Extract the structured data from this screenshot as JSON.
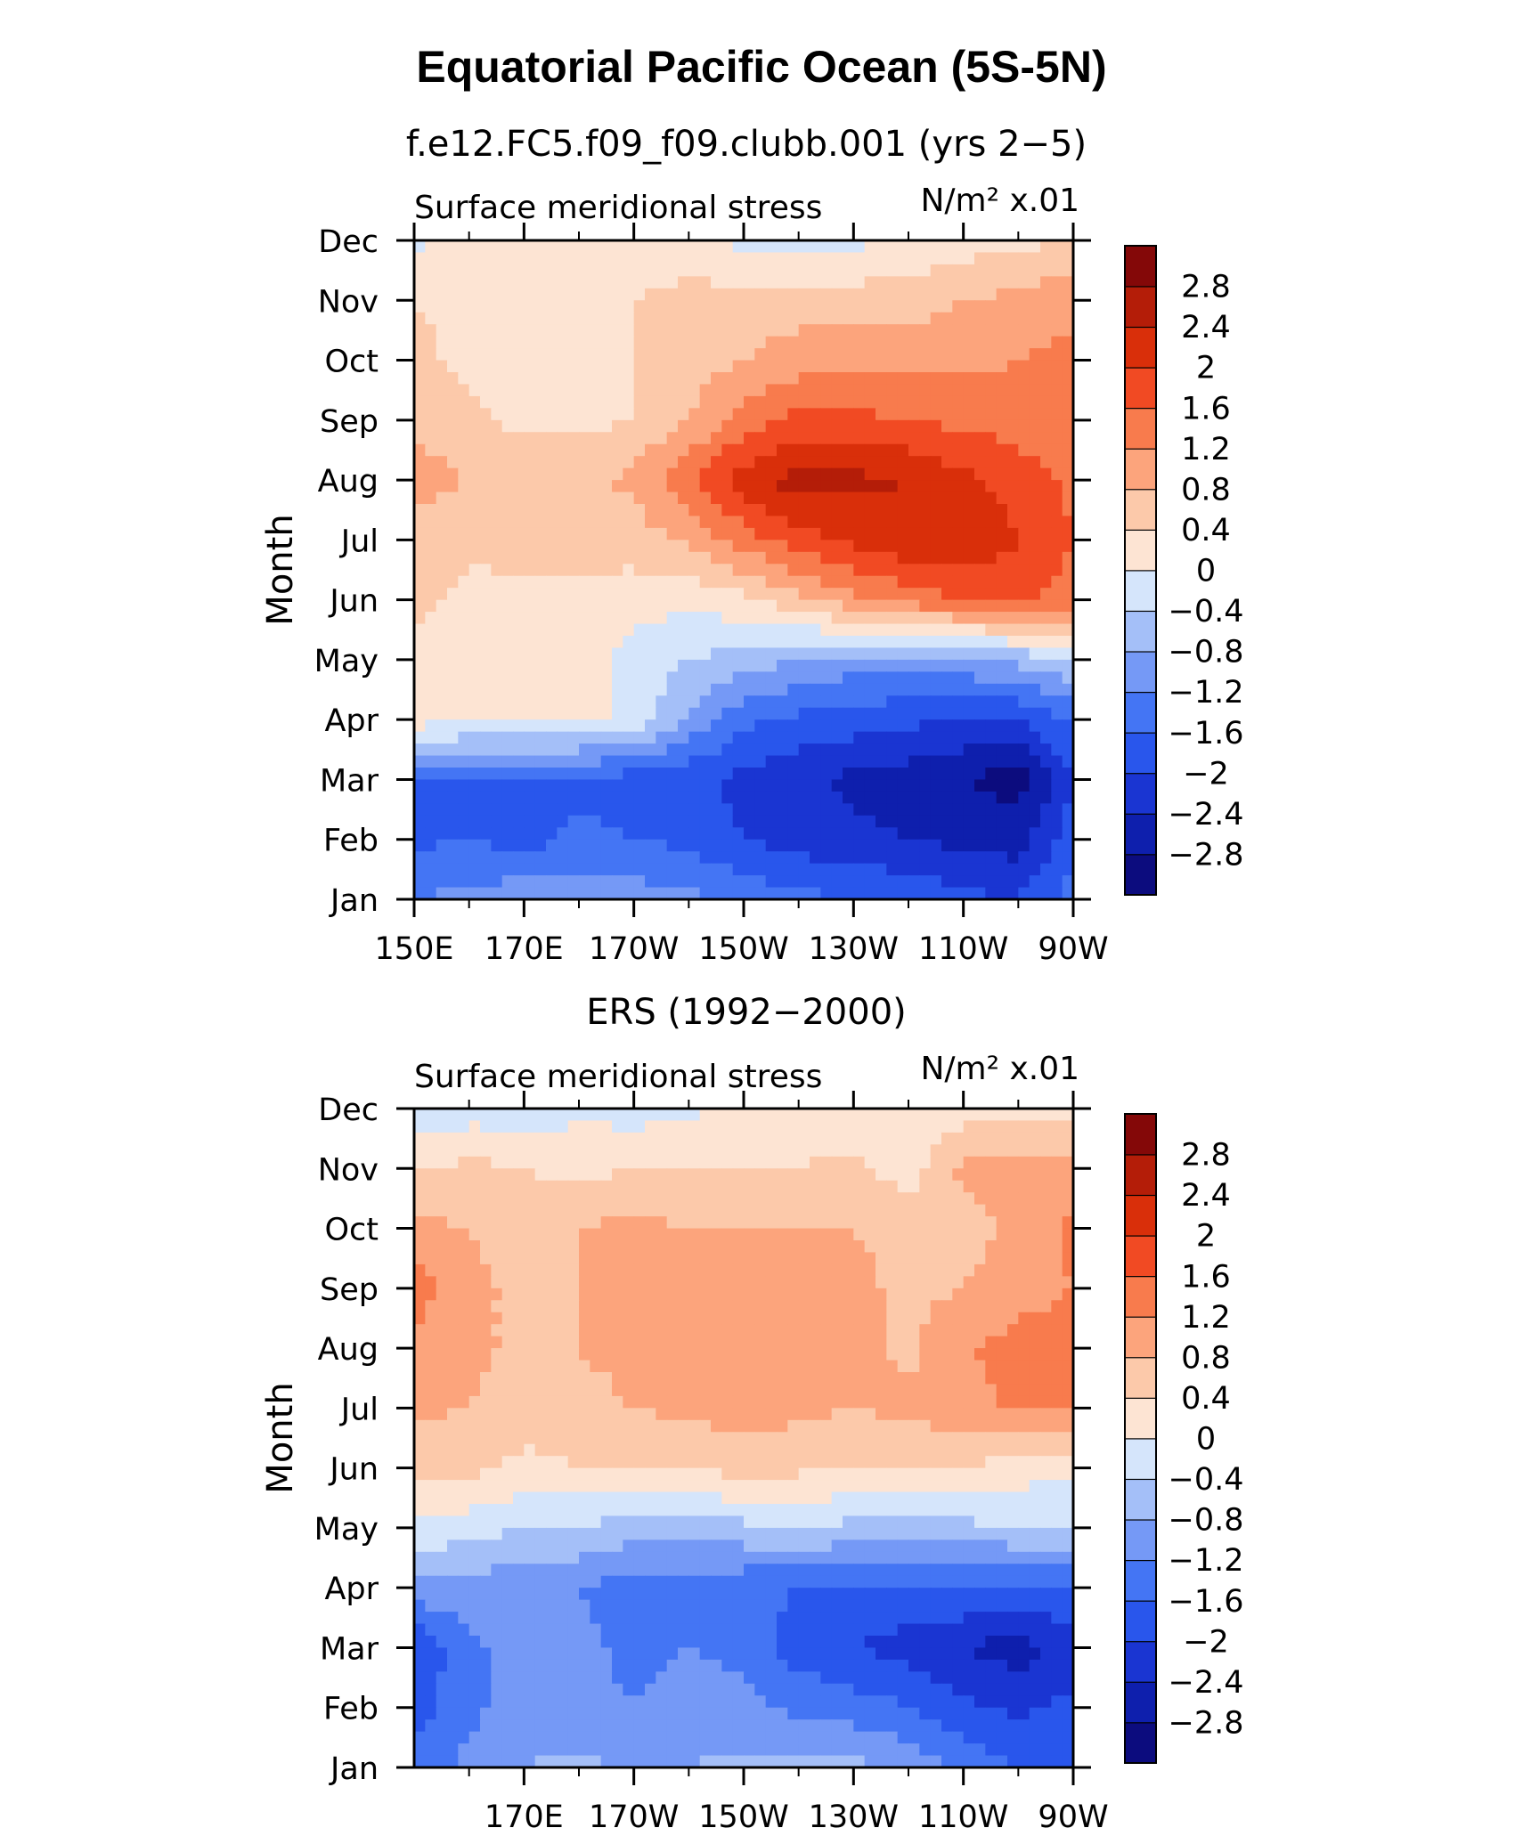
{
  "figure": {
    "title": "Equatorial Pacific Ocean (5S-5N)"
  },
  "panels": [
    {
      "subtitle": "f.e12.FC5.f09_f09.clubb.001 (yrs 2−5)",
      "left_label": "Surface meridional stress",
      "right_label": "N/m² x.01"
    },
    {
      "subtitle": "ERS (1992−2000)",
      "left_label": "Surface meridional stress",
      "right_label": "N/m² x.01"
    }
  ],
  "chart_data": [
    {
      "type": "heatmap",
      "name": "model",
      "title": "f.e12.FC5.f09_f09.clubb.001 (yrs 2−5)",
      "xlabel": "",
      "ylabel": "Month",
      "x_ticks": [
        "150E",
        "170E",
        "170W",
        "150W",
        "130W",
        "110W",
        "90W"
      ],
      "x_tick_values": [
        150,
        170,
        190,
        210,
        230,
        250,
        270
      ],
      "y_ticks": [
        "Jan",
        "Feb",
        "Mar",
        "Apr",
        "May",
        "Jun",
        "Jul",
        "Aug",
        "Sep",
        "Oct",
        "Nov",
        "Dec"
      ],
      "xlim": [
        150,
        270
      ],
      "ylim": [
        1,
        12
      ],
      "x": [
        150,
        160,
        170,
        180,
        190,
        200,
        210,
        220,
        230,
        240,
        250,
        260,
        270
      ],
      "y": [
        1,
        2,
        3,
        4,
        5,
        6,
        7,
        8,
        9,
        10,
        11,
        12
      ],
      "z": [
        [
          -1.2,
          -1.1,
          -0.9,
          -0.9,
          -1.0,
          -1.1,
          -1.3,
          -1.5,
          -1.6,
          -1.7,
          -1.9,
          -2.0,
          -1.4
        ],
        [
          -1.7,
          -1.6,
          -1.8,
          -1.5,
          -1.6,
          -1.7,
          -2.0,
          -2.2,
          -2.3,
          -2.4,
          -2.5,
          -2.6,
          -1.8
        ],
        [
          -1.6,
          -1.6,
          -1.6,
          -1.7,
          -1.8,
          -1.9,
          -2.1,
          -2.3,
          -2.5,
          -2.6,
          -2.8,
          -3.0,
          -2.0
        ],
        [
          0.2,
          0.1,
          0.1,
          0.1,
          -0.1,
          -0.9,
          -1.5,
          -1.7,
          -1.8,
          -1.9,
          -2.0,
          -2.0,
          -1.5
        ],
        [
          0.3,
          0.2,
          0.2,
          0.2,
          -0.2,
          -0.4,
          -0.6,
          -0.8,
          -1.0,
          -1.0,
          -0.9,
          -0.7,
          -0.4
        ],
        [
          0.5,
          0.3,
          0.3,
          0.3,
          0.2,
          0.1,
          0.3,
          0.7,
          1.1,
          1.4,
          1.6,
          1.7,
          1.4
        ],
        [
          0.6,
          0.5,
          0.5,
          0.5,
          0.6,
          0.9,
          1.4,
          1.8,
          2.1,
          2.3,
          2.4,
          2.0,
          1.6
        ],
        [
          1.0,
          0.8,
          0.7,
          0.7,
          0.9,
          1.5,
          2.2,
          2.6,
          2.5,
          2.4,
          2.1,
          1.8,
          1.5
        ],
        [
          0.7,
          0.5,
          0.3,
          0.3,
          0.4,
          0.8,
          1.4,
          1.7,
          1.7,
          1.6,
          1.5,
          1.4,
          1.3
        ],
        [
          0.5,
          0.3,
          0.2,
          0.3,
          0.4,
          0.6,
          0.8,
          1.0,
          1.1,
          1.1,
          1.1,
          1.2,
          1.3
        ],
        [
          0.4,
          0.3,
          0.3,
          0.3,
          0.4,
          0.5,
          0.6,
          0.6,
          0.6,
          0.6,
          0.8,
          0.9,
          1.1
        ],
        [
          -0.1,
          0.1,
          0.1,
          0.1,
          0.2,
          0.2,
          -0.1,
          -0.2,
          -0.1,
          0.1,
          0.2,
          0.3,
          0.4
        ]
      ]
    },
    {
      "type": "heatmap",
      "name": "observed",
      "title": "ERS (1992−2000)",
      "xlabel": "",
      "ylabel": "Month",
      "x_ticks": [
        "170E",
        "170W",
        "150W",
        "130W",
        "110W",
        "90W"
      ],
      "x_tick_values": [
        170,
        190,
        210,
        230,
        250,
        270
      ],
      "y_ticks": [
        "Jan",
        "Feb",
        "Mar",
        "Apr",
        "May",
        "Jun",
        "Jul",
        "Aug",
        "Sep",
        "Oct",
        "Nov",
        "Dec"
      ],
      "xlim": [
        150,
        270
      ],
      "ylim": [
        1,
        12
      ],
      "x": [
        150,
        160,
        170,
        180,
        190,
        200,
        210,
        220,
        230,
        240,
        250,
        260,
        270
      ],
      "y": [
        1,
        2,
        3,
        4,
        5,
        6,
        7,
        8,
        9,
        10,
        11,
        12
      ],
      "z": [
        [
          -1.4,
          -1.1,
          -0.8,
          -0.7,
          -0.9,
          -0.8,
          -0.7,
          -0.6,
          -0.7,
          -0.9,
          -1.3,
          -1.6,
          -1.6
        ],
        [
          -1.8,
          -1.3,
          -1.0,
          -1.1,
          -1.2,
          -1.0,
          -1.1,
          -1.3,
          -1.4,
          -1.6,
          -1.9,
          -2.1,
          -1.9
        ],
        [
          -2.0,
          -1.3,
          -1.0,
          -1.1,
          -1.3,
          -1.2,
          -1.3,
          -1.8,
          -2.0,
          -2.2,
          -2.4,
          -2.6,
          -2.2
        ],
        [
          -0.9,
          -1.0,
          -1.1,
          -1.2,
          -1.4,
          -1.4,
          -1.5,
          -1.6,
          -1.6,
          -1.7,
          -1.6,
          -1.7,
          -1.6
        ],
        [
          -0.1,
          -0.2,
          -0.4,
          -0.4,
          -0.6,
          -0.6,
          -0.5,
          -0.4,
          -0.5,
          -0.6,
          -0.5,
          -0.4,
          -0.4
        ],
        [
          0.5,
          0.5,
          0.3,
          0.4,
          0.5,
          0.4,
          0.6,
          0.5,
          0.4,
          0.5,
          0.4,
          0.2,
          0.1
        ],
        [
          0.9,
          0.8,
          0.6,
          0.7,
          0.8,
          0.9,
          1.0,
          0.9,
          0.8,
          0.9,
          1.0,
          1.3,
          1.2
        ],
        [
          1.1,
          0.9,
          0.7,
          0.8,
          0.9,
          1.0,
          1.0,
          1.0,
          1.0,
          0.7,
          1.2,
          1.3,
          1.3
        ],
        [
          1.4,
          0.9,
          0.7,
          0.8,
          1.0,
          1.0,
          0.9,
          1.0,
          0.9,
          0.7,
          0.8,
          1.1,
          1.2
        ],
        [
          0.9,
          0.8,
          0.6,
          0.8,
          0.9,
          0.8,
          0.8,
          0.8,
          0.8,
          0.7,
          0.6,
          0.9,
          1.3
        ],
        [
          0.4,
          0.5,
          0.4,
          0.3,
          0.4,
          0.4,
          0.4,
          0.4,
          0.5,
          0.2,
          0.9,
          1.0,
          0.9
        ],
        [
          -0.4,
          -0.2,
          -0.3,
          -0.1,
          -0.2,
          -0.1,
          0.2,
          0.2,
          0.1,
          0.1,
          0.2,
          0.3,
          0.3
        ]
      ]
    }
  ],
  "colorbar": {
    "levels": [
      -2.8,
      -2.4,
      -2,
      -1.6,
      -1.2,
      -0.8,
      -0.4,
      0,
      0.4,
      0.8,
      1.2,
      1.6,
      2,
      2.4,
      2.8
    ],
    "labels": [
      "−2.8",
      "−2.4",
      "−2",
      "−1.6",
      "−1.2",
      "−0.8",
      "−0.4",
      "0",
      "0.4",
      "0.8",
      "1.2",
      "1.6",
      "2",
      "2.4",
      "2.8"
    ],
    "colors": [
      "#0c0c7e",
      "#0e1fad",
      "#1a35d2",
      "#2956ec",
      "#4475f4",
      "#7599f6",
      "#a4bff8",
      "#d5e5fb",
      "#fde4d3",
      "#fcc9aa",
      "#fca47c",
      "#f87b4d",
      "#f14a23",
      "#d92f0a",
      "#b41d08",
      "#840808"
    ]
  }
}
